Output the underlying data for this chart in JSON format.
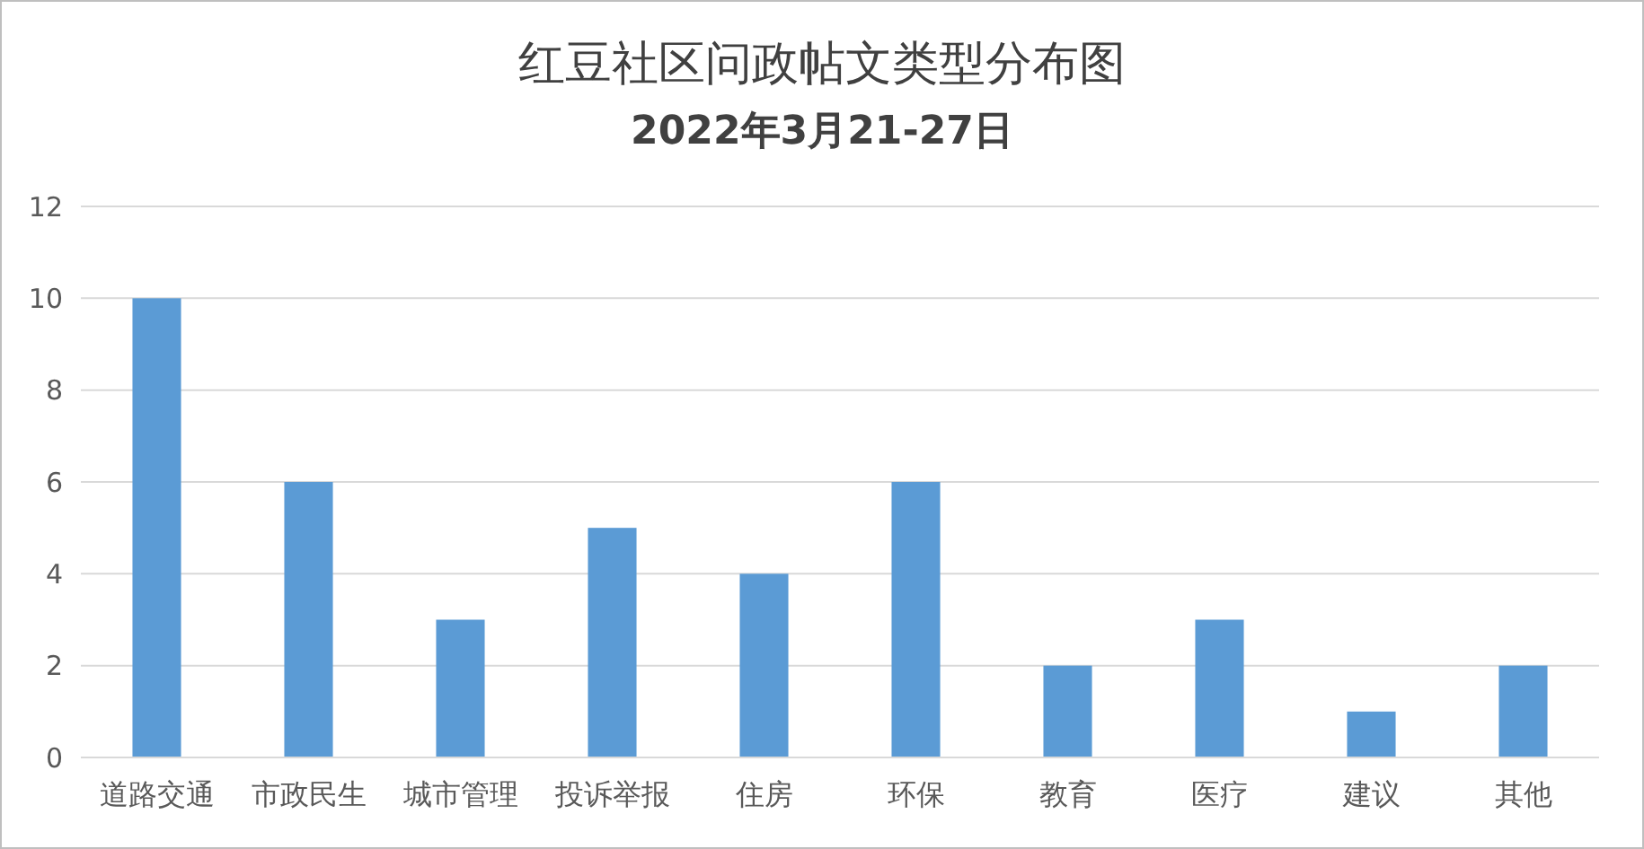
{
  "chart_data": {
    "type": "bar",
    "title": "红豆社区问政帖文类型分布图",
    "subtitle": "2022年3月21-27日",
    "categories": [
      "道路交通",
      "市政民生",
      "城市管理",
      "投诉举报",
      "住房",
      "环保",
      "教育",
      "医疗",
      "建议",
      "其他"
    ],
    "values": [
      10,
      6,
      3,
      5,
      4,
      6,
      2,
      3,
      1,
      2
    ],
    "color": "#5b9bd5",
    "ylim": [
      0,
      12
    ],
    "yticks": [
      0,
      2,
      4,
      6,
      8,
      10,
      12
    ],
    "grid": "y"
  }
}
